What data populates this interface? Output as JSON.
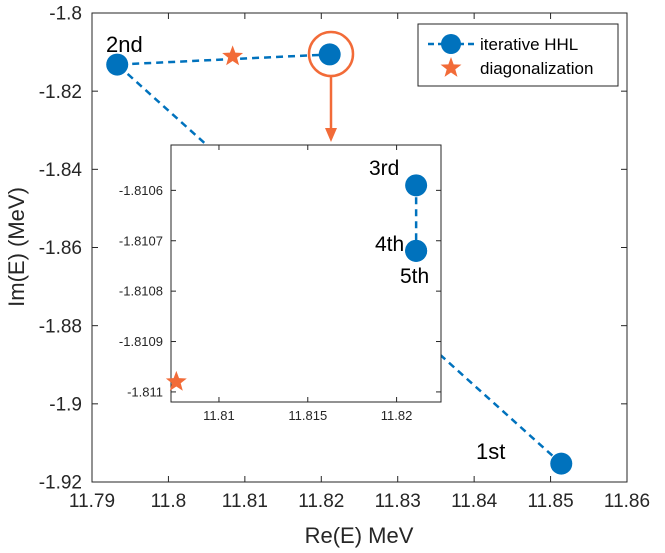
{
  "chart_data": [
    {
      "type": "line",
      "xlabel": "Re(E)  MeV",
      "ylabel": "Im(E)  (MeV)",
      "xlim": [
        11.79,
        11.86
      ],
      "ylim": [
        -1.92,
        -1.8
      ],
      "xticks": [
        11.79,
        11.8,
        11.81,
        11.82,
        11.83,
        11.84,
        11.85,
        11.86
      ],
      "xtick_labels": [
        "11.79",
        "11.8",
        "11.81",
        "11.82",
        "11.83",
        "11.84",
        "11.85",
        "11.86"
      ],
      "yticks": [
        -1.8,
        -1.82,
        -1.84,
        -1.86,
        -1.88,
        -1.9,
        -1.92
      ],
      "ytick_labels": [
        "-1.8",
        "-1.82",
        "-1.84",
        "-1.86",
        "-1.88",
        "-1.9",
        "-1.92"
      ],
      "grid": false,
      "legend": "top-right",
      "series": [
        {
          "name": "iterative HHL",
          "style": "dashed-line-circles",
          "color": "#0072BD",
          "points": [
            {
              "x": 11.8514,
              "y": -1.9153
            },
            {
              "x": 11.7933,
              "y": -1.8132
            },
            {
              "x": 11.8211,
              "y": -1.8106
            }
          ]
        },
        {
          "name": "diagonalization",
          "style": "star",
          "color": "#F26B38",
          "points": [
            {
              "x": 11.8084,
              "y": -1.8111
            }
          ]
        }
      ],
      "annotations": [
        {
          "text": "2nd",
          "x": 11.7933,
          "y": -1.8132
        },
        {
          "text": "1st",
          "x": 11.8514,
          "y": -1.9153
        }
      ]
    },
    {
      "type": "line",
      "xlim": [
        11.8073,
        11.8225
      ],
      "ylim": [
        -1.81102,
        -1.81051
      ],
      "xticks": [
        11.81,
        11.815,
        11.82
      ],
      "xtick_labels": [
        "11.81",
        "11.815",
        "11.82"
      ],
      "yticks": [
        -1.8106,
        -1.8107,
        -1.8108,
        -1.8109,
        -1.811
      ],
      "ytick_labels": [
        "-1.8106",
        "-1.8107",
        "-1.8108",
        "-1.8109",
        "-1.811"
      ],
      "series": [
        {
          "name": "iterative HHL",
          "style": "dashed-line-circles",
          "color": "#0072BD",
          "points": [
            {
              "x": 11.8211,
              "y": -1.81059
            },
            {
              "x": 11.8211,
              "y": -1.81072
            },
            {
              "x": 11.8211,
              "y": -1.81072
            }
          ]
        },
        {
          "name": "diagonalization",
          "style": "star",
          "color": "#F26B38",
          "points": [
            {
              "x": 11.8076,
              "y": -1.81098
            }
          ]
        }
      ],
      "annotations": [
        {
          "text": "3rd",
          "x": 11.8211,
          "y": -1.81059
        },
        {
          "text": "4th",
          "x": 11.8211,
          "y": -1.81072
        },
        {
          "text": "5th",
          "x": 11.8211,
          "y": -1.81072
        }
      ]
    }
  ]
}
